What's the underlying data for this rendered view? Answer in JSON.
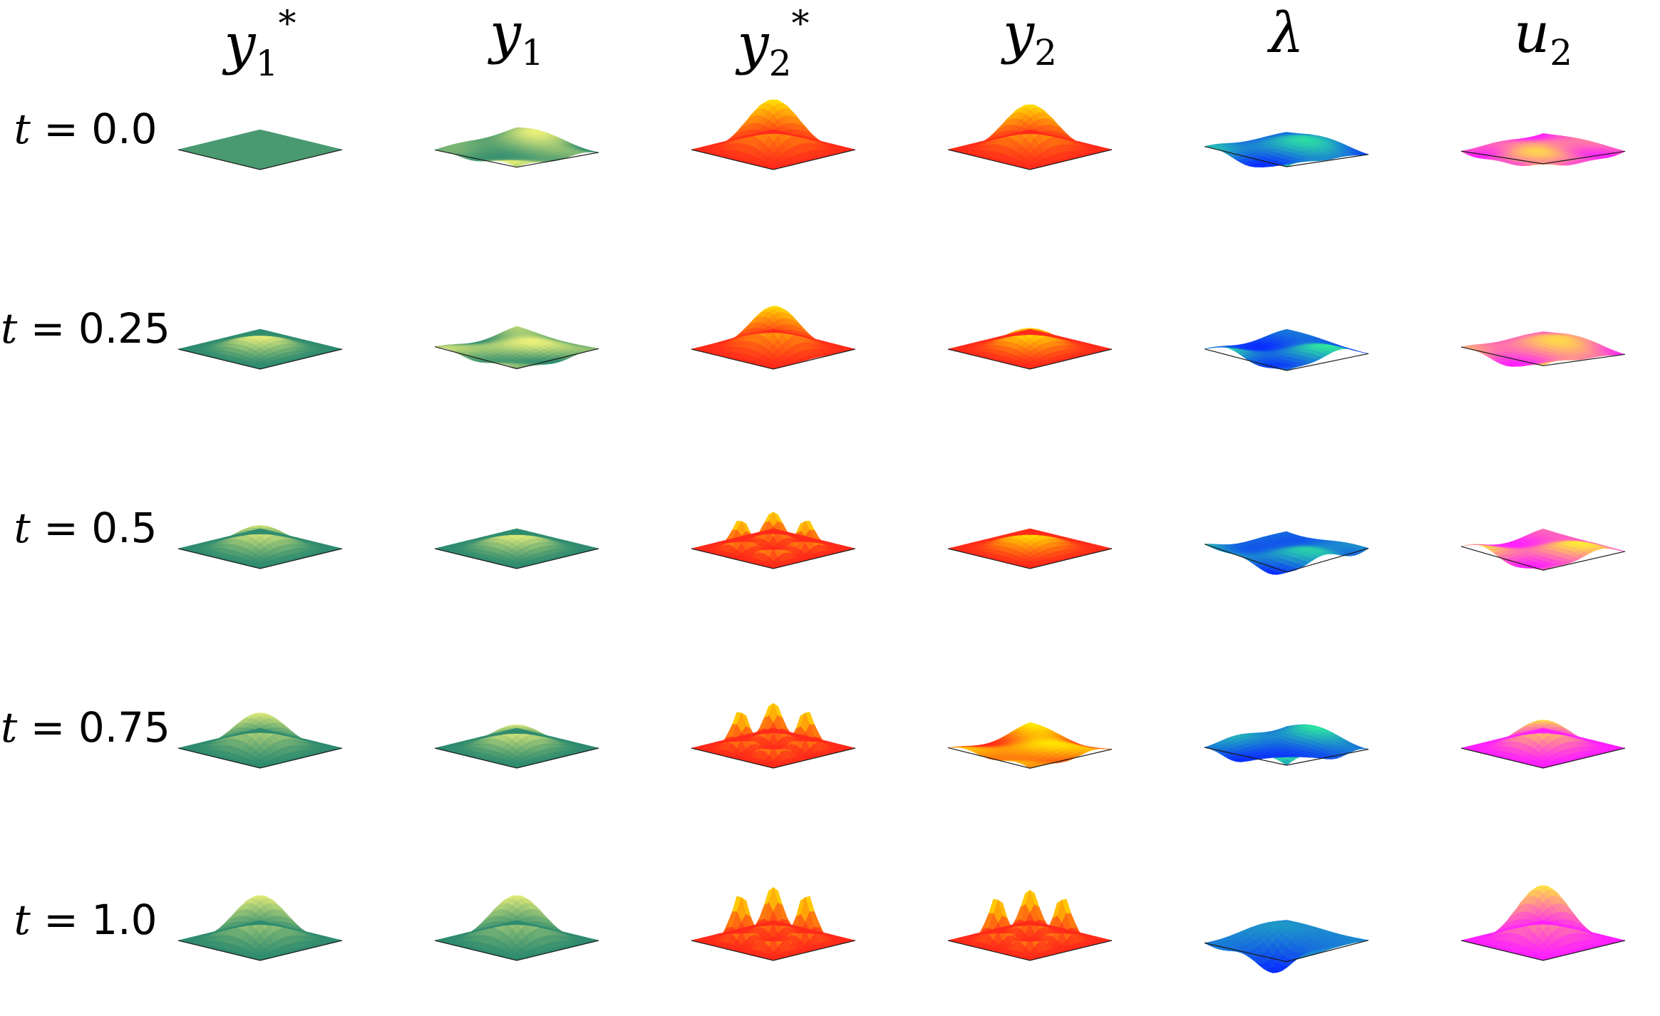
{
  "columns": [
    {
      "id": "y1star",
      "base": "y",
      "sub": "1",
      "sup": "*",
      "colormap": "summer",
      "colors": [
        "#2e8b6f",
        "#eaf07a"
      ]
    },
    {
      "id": "y1",
      "base": "y",
      "sub": "1",
      "sup": "",
      "colormap": "summer",
      "colors": [
        "#2e8b6f",
        "#eaf07a"
      ]
    },
    {
      "id": "y2star",
      "base": "y",
      "sub": "2",
      "sup": "*",
      "colormap": "autumn",
      "colors": [
        "#ff2a1a",
        "#ffe800"
      ]
    },
    {
      "id": "y2",
      "base": "y",
      "sub": "2",
      "sup": "",
      "colormap": "autumn",
      "colors": [
        "#ff2a1a",
        "#ffe800"
      ]
    },
    {
      "id": "lambda",
      "base": "λ",
      "sub": "",
      "sup": "",
      "colormap": "winter",
      "colors": [
        "#0a2dff",
        "#2ee6a0"
      ]
    },
    {
      "id": "u2",
      "base": "u",
      "sub": "2",
      "sup": "",
      "colormap": "spring",
      "colors": [
        "#ff1fff",
        "#ffe93a"
      ]
    }
  ],
  "rows": [
    {
      "t_label": "t",
      "eq": " = 0.0"
    },
    {
      "t_label": "t",
      "eq": " = 0.25"
    },
    {
      "t_label": "t",
      "eq": " = 0.5"
    },
    {
      "t_label": "t",
      "eq": " = 0.75"
    },
    {
      "t_label": "t",
      "eq": " = 1.0"
    }
  ],
  "surfaces": [
    [
      {
        "kind": "flat",
        "amp": 0
      },
      {
        "kind": "noise",
        "amp": 0.25
      },
      {
        "kind": "bump",
        "amp": 1.0
      },
      {
        "kind": "bump",
        "amp": 0.9
      },
      {
        "kind": "noise",
        "amp": 0.3
      },
      {
        "kind": "noise",
        "amp": 0.3
      }
    ],
    [
      {
        "kind": "bump",
        "amp": 0.3
      },
      {
        "kind": "noise",
        "amp": 0.25
      },
      {
        "kind": "twobump",
        "amp": 0.8
      },
      {
        "kind": "bump",
        "amp": 0.4
      },
      {
        "kind": "noise",
        "amp": 0.35
      },
      {
        "kind": "noise",
        "amp": 0.3
      }
    ],
    [
      {
        "kind": "bump",
        "amp": 0.45
      },
      {
        "kind": "bump",
        "amp": 0.35
      },
      {
        "kind": "fourbump",
        "amp": 1.0
      },
      {
        "kind": "bump",
        "amp": 0.35
      },
      {
        "kind": "noise",
        "amp": 0.4
      },
      {
        "kind": "noise",
        "amp": 0.35
      }
    ],
    [
      {
        "kind": "bump",
        "amp": 0.7
      },
      {
        "kind": "bump",
        "amp": 0.45
      },
      {
        "kind": "fourbump",
        "amp": 1.3
      },
      {
        "kind": "noise",
        "amp": 0.35
      },
      {
        "kind": "noise",
        "amp": 0.45
      },
      {
        "kind": "bump",
        "amp": 0.55
      }
    ],
    [
      {
        "kind": "bump",
        "amp": 0.9
      },
      {
        "kind": "bump",
        "amp": 0.9
      },
      {
        "kind": "fourbump",
        "amp": 1.6
      },
      {
        "kind": "fourbump",
        "amp": 1.5
      },
      {
        "kind": "dip",
        "amp": 0.9
      },
      {
        "kind": "bump",
        "amp": 1.1
      }
    ]
  ]
}
